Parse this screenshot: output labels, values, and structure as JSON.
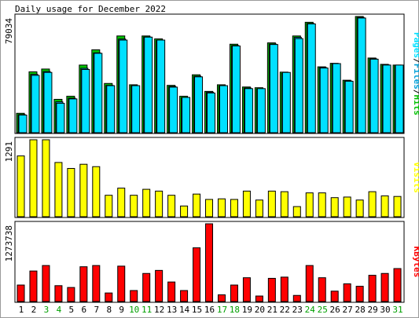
{
  "title": "Daily usage for December 2022",
  "colors": {
    "hits": "#00c000",
    "files": "#00a0d8",
    "pages": "#00e0ff",
    "visits": "#ffff00",
    "kbytes": "#ff0000",
    "weekend_label": "#00a000",
    "weekday_label": "#000000",
    "panel_bg": "#ffffff",
    "frame": "#9a9a9a"
  },
  "chart_data": [
    {
      "type": "bar",
      "title": "Daily usage for December 2022",
      "categories": [
        "1",
        "2",
        "3",
        "4",
        "5",
        "6",
        "7",
        "8",
        "9",
        "10",
        "11",
        "12",
        "13",
        "14",
        "15",
        "16",
        "17",
        "18",
        "19",
        "20",
        "21",
        "22",
        "23",
        "24",
        "25",
        "26",
        "27",
        "28",
        "29",
        "30",
        "31"
      ],
      "weekend_days": [
        "3",
        "4",
        "10",
        "11",
        "17",
        "18",
        "24",
        "25",
        "31"
      ],
      "ymax_label": "79034",
      "ylim": [
        0,
        79034
      ],
      "legend": [
        "Pages",
        "Files",
        "Hits"
      ],
      "series": [
        {
          "name": "Hits",
          "values": [
            13200,
            41400,
            43300,
            22700,
            24800,
            46000,
            56400,
            33500,
            65800,
            32600,
            65800,
            63800,
            32200,
            24800,
            39400,
            28100,
            32600,
            60200,
            31100,
            30600,
            61100,
            41200,
            65800,
            75100,
            44800,
            47200,
            35700,
            79034,
            50800,
            46500,
            46000
          ]
        },
        {
          "name": "Files",
          "values": [
            12300,
            39700,
            41600,
            21000,
            23500,
            43800,
            54300,
            32200,
            63700,
            31900,
            65100,
            62900,
            31500,
            23900,
            38500,
            27600,
            31800,
            59300,
            30400,
            29800,
            60300,
            40300,
            64900,
            74300,
            44300,
            46700,
            35200,
            78400,
            50300,
            46100,
            45600
          ]
        },
        {
          "name": "Pages",
          "values": [
            12000,
            39000,
            41000,
            20000,
            23000,
            43000,
            54000,
            32000,
            63000,
            32000,
            65000,
            63000,
            31000,
            24000,
            38000,
            27000,
            32000,
            59000,
            30000,
            30000,
            60000,
            41000,
            64000,
            74000,
            44000,
            47000,
            35000,
            78000,
            50000,
            46000,
            46000
          ]
        }
      ]
    },
    {
      "type": "bar",
      "categories": [
        "1",
        "2",
        "3",
        "4",
        "5",
        "6",
        "7",
        "8",
        "9",
        "10",
        "11",
        "12",
        "13",
        "14",
        "15",
        "16",
        "17",
        "18",
        "19",
        "20",
        "21",
        "22",
        "23",
        "24",
        "25",
        "26",
        "27",
        "28",
        "29",
        "30",
        "31"
      ],
      "ymax_label": "1291",
      "ylim": [
        0,
        1291
      ],
      "legend": [
        "Visits"
      ],
      "series": [
        {
          "name": "Visits",
          "values": [
            1020,
            1291,
            1291,
            910,
            810,
            880,
            840,
            360,
            480,
            360,
            460,
            430,
            360,
            180,
            380,
            290,
            300,
            290,
            430,
            280,
            430,
            420,
            170,
            400,
            400,
            320,
            330,
            280,
            420,
            350,
            340
          ]
        }
      ]
    },
    {
      "type": "bar",
      "categories": [
        "1",
        "2",
        "3",
        "4",
        "5",
        "6",
        "7",
        "8",
        "9",
        "10",
        "11",
        "12",
        "13",
        "14",
        "15",
        "16",
        "17",
        "18",
        "19",
        "20",
        "21",
        "22",
        "23",
        "24",
        "25",
        "26",
        "27",
        "28",
        "29",
        "30",
        "31"
      ],
      "ymax_label": "1273738",
      "ylim": [
        0,
        1273738
      ],
      "legend": [
        "KBytes"
      ],
      "series": [
        {
          "name": "KBytes",
          "values": [
            270000,
            500000,
            590000,
            260000,
            230000,
            570000,
            590000,
            140000,
            580000,
            180000,
            460000,
            510000,
            320000,
            180000,
            880000,
            1273738,
            110000,
            270000,
            390000,
            90000,
            380000,
            400000,
            100000,
            590000,
            390000,
            170000,
            290000,
            250000,
            430000,
            460000,
            540000
          ]
        }
      ]
    }
  ]
}
